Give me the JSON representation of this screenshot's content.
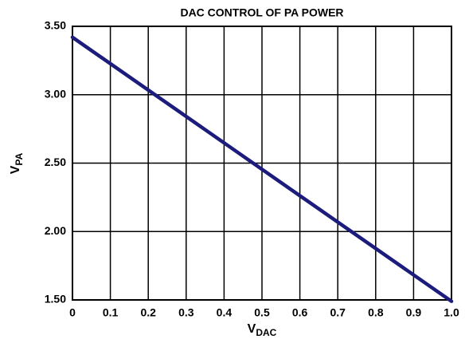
{
  "chart_data": {
    "type": "line",
    "title": "DAC CONTROL OF PA POWER",
    "x_label": {
      "text": "V",
      "subscript": "DAC"
    },
    "y_label": {
      "text": "V",
      "subscript": "PA"
    },
    "x": [
      0,
      1.0
    ],
    "series": [
      {
        "name": "VPA",
        "color": "#1c1c7c",
        "values": [
          3.42,
          1.49
        ]
      }
    ],
    "xlim": [
      0,
      1.0
    ],
    "xticks": [
      0,
      0.1,
      0.2,
      0.3,
      0.4,
      0.5,
      0.6,
      0.7,
      0.8,
      0.9,
      {
        "value": 1.0,
        "label": "1.0"
      }
    ],
    "ylim": [
      1.5,
      3.5
    ],
    "yticks": [
      {
        "value": 1.5,
        "label": "1.50"
      },
      {
        "value": 2.0,
        "label": "2.00"
      },
      {
        "value": 2.5,
        "label": "2.50"
      },
      {
        "value": 3.0,
        "label": "3.00"
      },
      {
        "value": 3.5,
        "label": "3.50"
      }
    ],
    "grid": true
  }
}
